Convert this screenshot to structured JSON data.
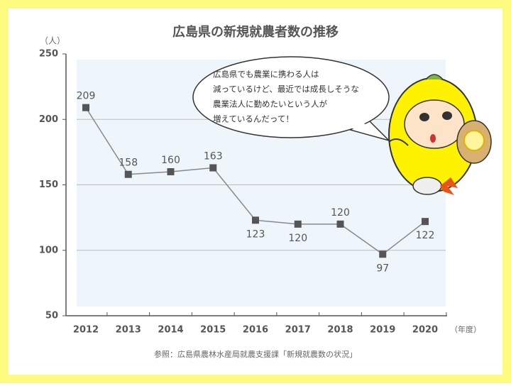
{
  "chart_data": {
    "type": "line",
    "title": "広島県の新規就農者数の推移",
    "y_label": "（人）",
    "x_label": "（年度）",
    "source": "参照：広島県農林水産局就農支援課「新規就農数の状況」",
    "annotation": [
      "広島県でも農業に携わる人は",
      "減っているけど、最近では成長しそうな",
      "農業法人に勤めたいという人が",
      "増えているんだって！"
    ],
    "categories": [
      "2012",
      "2013",
      "2014",
      "2015",
      "2016",
      "2017",
      "2018",
      "2019",
      "2020"
    ],
    "values": [
      209,
      158,
      160,
      163,
      123,
      120,
      120,
      97,
      122
    ],
    "color": "#555555",
    "ylim": [
      50,
      250
    ],
    "yticks": [
      50,
      100,
      150,
      200,
      250
    ],
    "grid": true
  }
}
